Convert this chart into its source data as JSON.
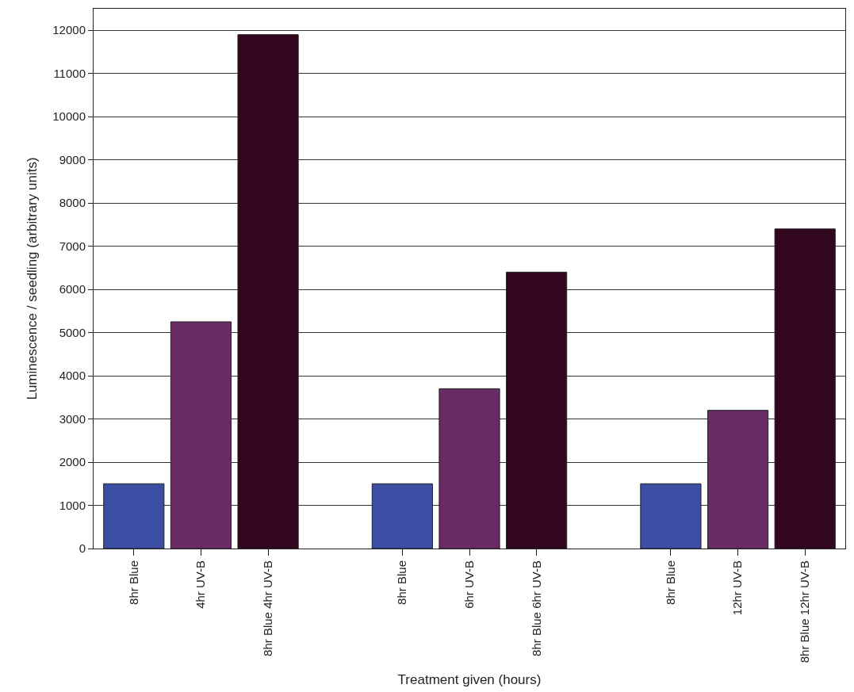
{
  "chart_data": {
    "type": "bar",
    "xlabel": "Treatment given (hours)",
    "ylabel": "Luminescence / seedling (arbitrary units)",
    "categories": [
      "8hr Blue",
      "4hr UV-B",
      "8hr Blue 4hr UV-B",
      null,
      "8hr Blue",
      "6hr UV-B",
      "8hr Blue 6hr UV-B",
      null,
      "8hr Blue",
      "12hr UV-B",
      "8hr Blue 12hr UV-B"
    ],
    "values": [
      1500,
      5250,
      11900,
      null,
      1500,
      3700,
      6400,
      null,
      1500,
      3200,
      7400
    ],
    "colors": [
      "#3b4ea3",
      "#6a2a63",
      "#32061f",
      null,
      "#3b4ea3",
      "#6a2a63",
      "#32061f",
      null,
      "#3b4ea3",
      "#6a2a63",
      "#32061f"
    ],
    "ylim": [
      0,
      12500
    ],
    "yticks": [
      0,
      1000,
      2000,
      3000,
      4000,
      5000,
      6000,
      7000,
      8000,
      9000,
      10000,
      11000,
      12000
    ],
    "grid": "y"
  }
}
